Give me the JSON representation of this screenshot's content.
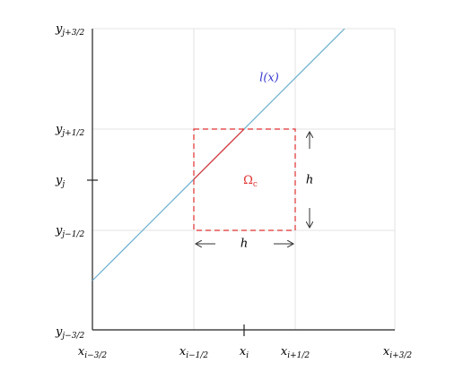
{
  "y_labels": [
    {
      "base": "y",
      "sub": "j+3/2"
    },
    {
      "base": "y",
      "sub": "j+1/2"
    },
    {
      "base": "y",
      "sub": "j"
    },
    {
      "base": "y",
      "sub": "j−1/2"
    },
    {
      "base": "y",
      "sub": "j−3/2"
    }
  ],
  "x_labels": [
    {
      "base": "x",
      "sub": "i−3/2"
    },
    {
      "base": "x",
      "sub": "i−1/2"
    },
    {
      "base": "x",
      "sub": "i"
    },
    {
      "base": "x",
      "sub": "i+1/2"
    },
    {
      "base": "x",
      "sub": "i+3/2"
    }
  ],
  "curve_label": "l(x)",
  "region_label": {
    "base": "Ω",
    "sub": "c"
  },
  "height_label": "h",
  "width_label": "h"
}
